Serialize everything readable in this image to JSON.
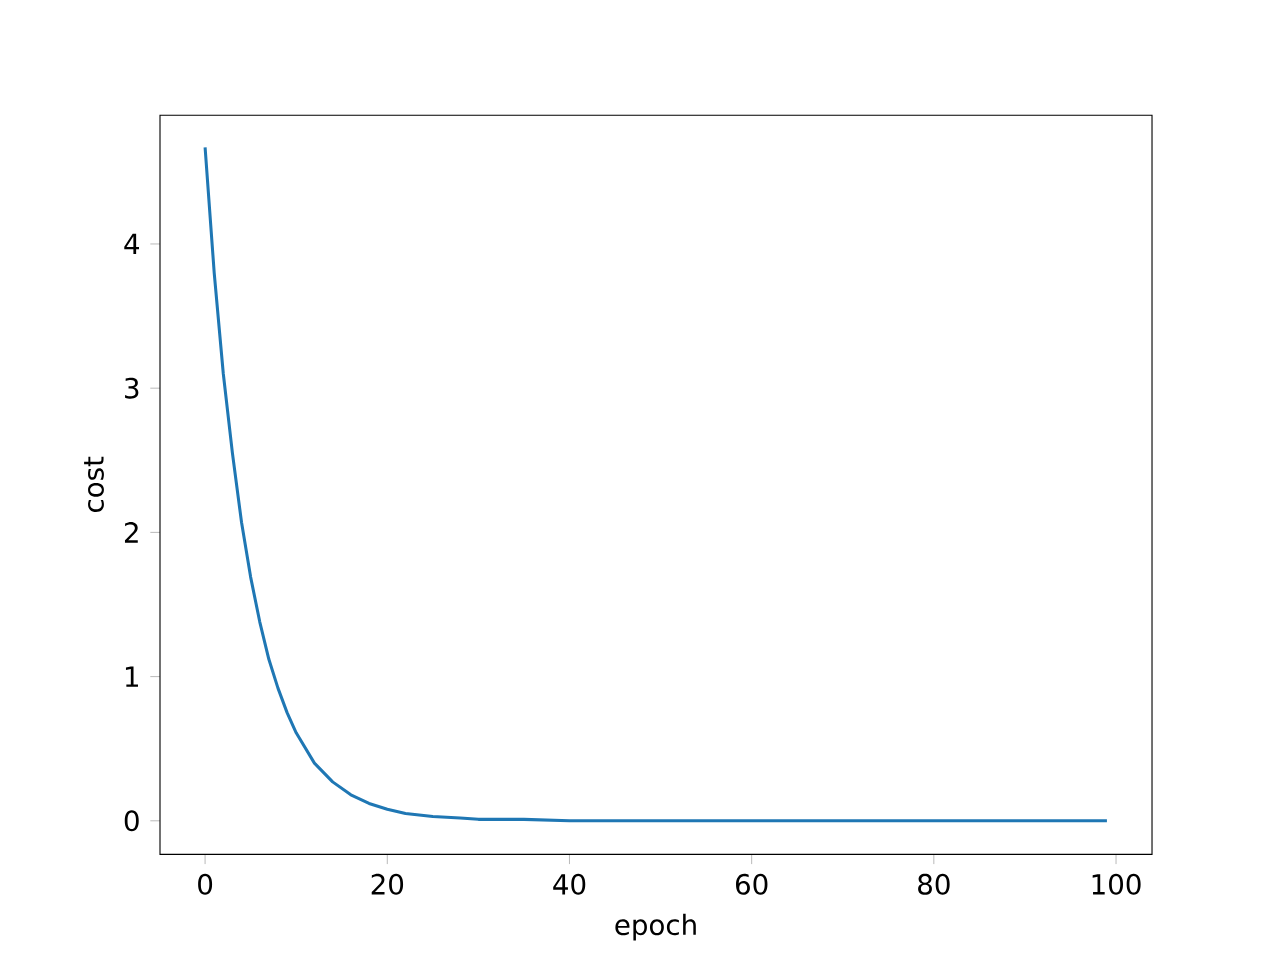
{
  "chart_data": {
    "type": "line",
    "xlabel": "epoch",
    "ylabel": "cost",
    "x": [
      0,
      1,
      2,
      3,
      4,
      5,
      6,
      7,
      8,
      9,
      10,
      12,
      14,
      16,
      18,
      20,
      22,
      25,
      28,
      30,
      35,
      40,
      50,
      60,
      70,
      80,
      90,
      99
    ],
    "series": [
      {
        "color": "#1f77b4",
        "values": [
          4.67,
          3.8,
          3.1,
          2.55,
          2.07,
          1.69,
          1.38,
          1.12,
          0.92,
          0.75,
          0.61,
          0.4,
          0.27,
          0.18,
          0.12,
          0.08,
          0.05,
          0.03,
          0.02,
          0.01,
          0.01,
          0,
          0,
          0,
          0,
          0,
          0,
          0
        ]
      }
    ],
    "xlim": [
      -4.95,
      103.95
    ],
    "ylim": [
      -0.233,
      4.893
    ],
    "xticks": [
      0,
      20,
      40,
      60,
      80,
      100
    ],
    "yticks": [
      0,
      1,
      2,
      3,
      4
    ],
    "grid": false,
    "marker": "none",
    "line_style": "solid"
  }
}
